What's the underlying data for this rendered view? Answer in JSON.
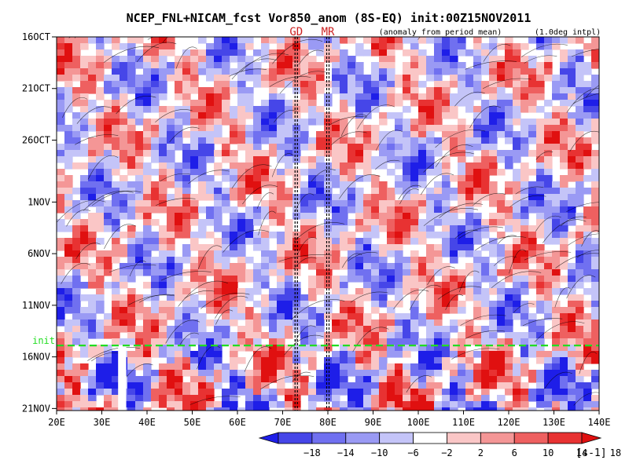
{
  "chart_data": {
    "type": "heatmap",
    "title": "NCEP_FNL+NICAM_fcst Vor850_anom (8S-EQ) init:00Z15NOV2011",
    "subtitle_left": "(anomaly from period mean)",
    "subtitle_right": "(1.0deg intpl)",
    "x_axis": {
      "ticks": [
        "20E",
        "30E",
        "40E",
        "50E",
        "60E",
        "70E",
        "80E",
        "90E",
        "100E",
        "110E",
        "120E",
        "130E",
        "140E"
      ],
      "range": [
        20,
        140
      ]
    },
    "y_axis": {
      "ticks": [
        "16OCT",
        "21OCT",
        "26OCT",
        "1NOV",
        "6NOV",
        "11NOV",
        "16NOV",
        "21NOV"
      ],
      "tick_days": [
        0,
        5,
        10,
        16,
        21,
        26,
        31,
        36
      ],
      "range_days": [
        0,
        36.2
      ]
    },
    "init_line": {
      "label": "init",
      "day": 29.9,
      "color": "#22dd22"
    },
    "site_markers": [
      {
        "label": "GD",
        "lon": 73,
        "color": "#cc2222"
      },
      {
        "label": "MR",
        "lon": 80,
        "color": "#cc2222"
      }
    ],
    "missing_band_lon": [
      33.6,
      35.4
    ],
    "missing_band_day_start": 30,
    "colorbar": {
      "ticks": [
        "−18",
        "−14",
        "−10",
        "−6",
        "−2",
        "2",
        "6",
        "10",
        "14",
        "18"
      ],
      "unit": "[s-1]",
      "colors": [
        "#1e1ee8",
        "#4646e8",
        "#7070f0",
        "#9a9af4",
        "#c4c4f8",
        "#ffffff",
        "#fac6c6",
        "#f49696",
        "#ee6060",
        "#e83232",
        "#e01010"
      ]
    }
  }
}
